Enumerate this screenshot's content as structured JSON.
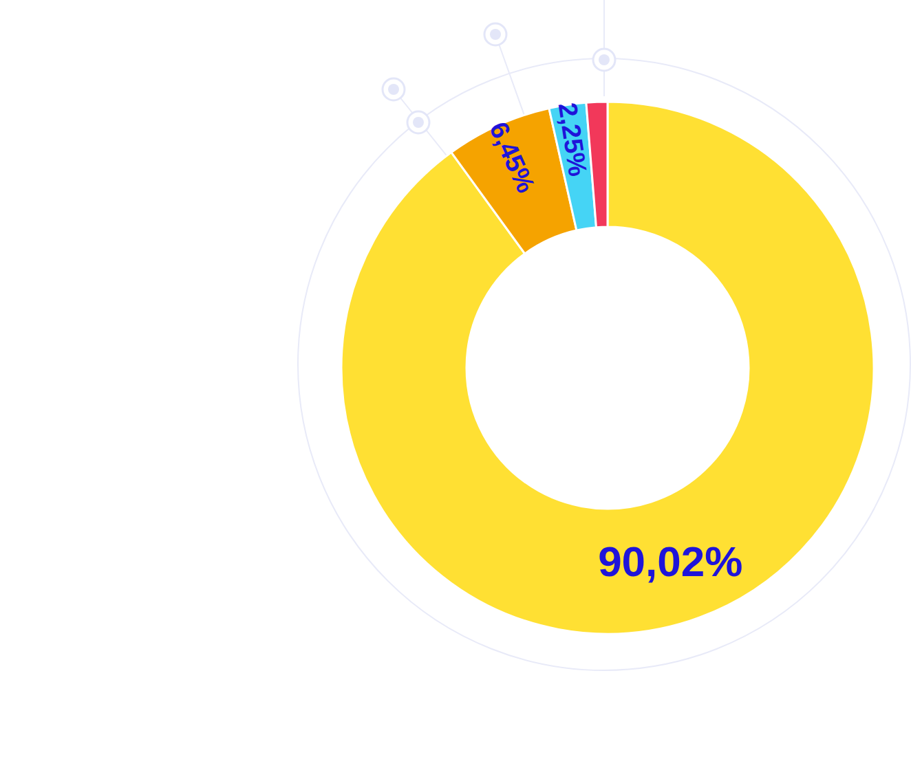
{
  "chart_data": {
    "type": "donut",
    "values": [
      90.02,
      6.45,
      2.25,
      1.28
    ],
    "value_labels": [
      "90,02%",
      "6,45%",
      "2,25%",
      null
    ],
    "colors": [
      "#FFE033",
      "#F5A300",
      "#45D4F5",
      "#F2385A"
    ],
    "data_labels": true
  }
}
